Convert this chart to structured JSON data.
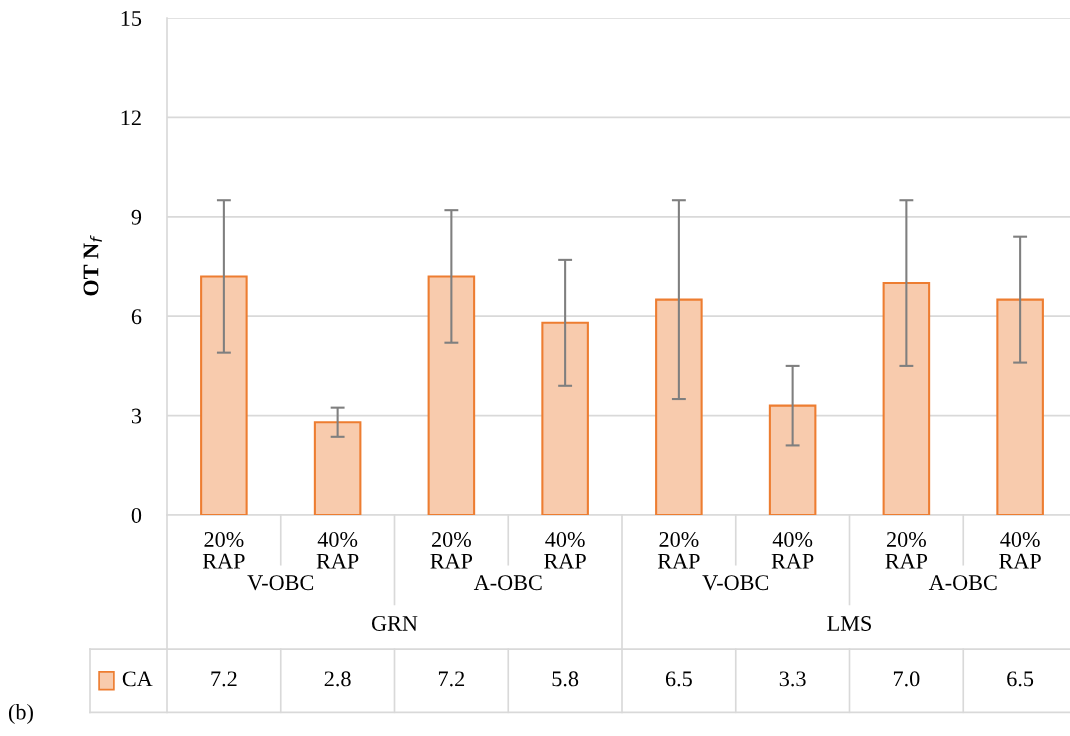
{
  "chart_data": {
    "type": "bar",
    "ylabel": "OT N$_{f}$",
    "categories": [
      "20%\nRAP",
      "40%\nRAP",
      "20%\nRAP",
      "40%\nRAP",
      "20%\nRAP",
      "40%\nRAP",
      "20%\nRAP",
      "40%\nRAP"
    ],
    "series": [
      {
        "name": "CA",
        "color": "#f8cbad",
        "values": [
          7.2,
          2.8,
          7.2,
          5.8,
          6.5,
          3.3,
          7.0,
          6.5
        ],
        "value_labels": [
          "7.2",
          "2.8",
          "7.2",
          "5.8",
          "6.5",
          "3.3",
          "7.0",
          "6.5"
        ],
        "errors": [
          2.3,
          0.44,
          2.0,
          1.9,
          3.0,
          1.2,
          2.5,
          1.9
        ]
      }
    ],
    "ylim": [
      0,
      15
    ],
    "yticks": [
      0,
      3,
      6,
      9,
      12,
      15
    ],
    "grid": "y",
    "annotations": [
      "V-OBC",
      "A-OBC",
      "V-OBC",
      "A-OBC",
      "GRN",
      "LMS",
      "(b)"
    ]
  }
}
